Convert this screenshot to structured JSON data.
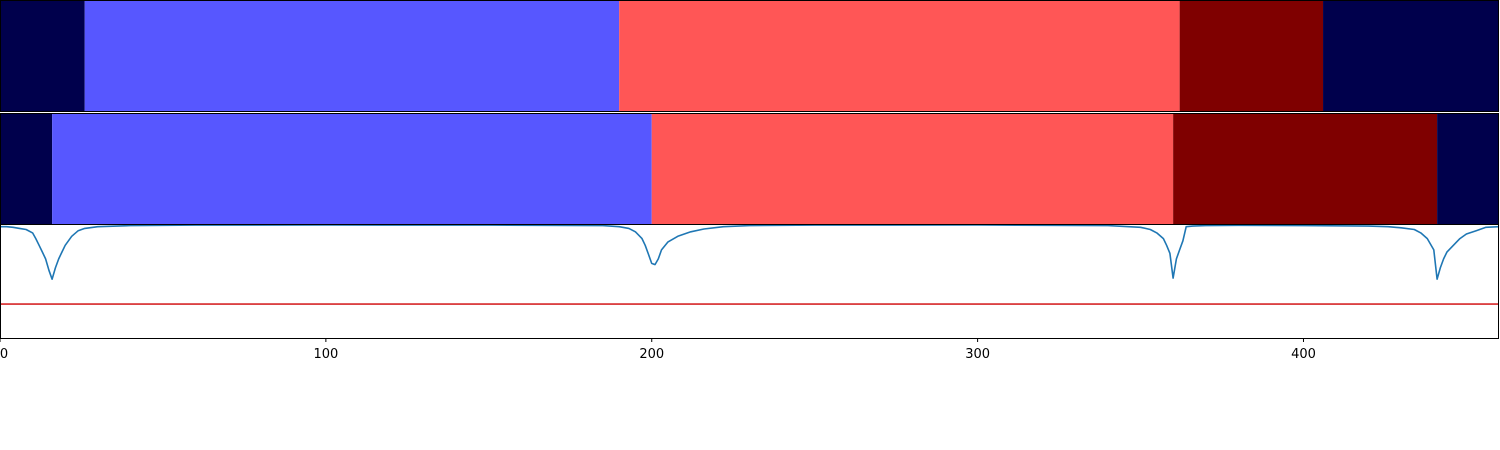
{
  "chart_data": [
    {
      "type": "heatmap",
      "xlim": [
        0,
        460
      ],
      "segments": [
        {
          "start": 0,
          "end": 26,
          "color": "#00004c"
        },
        {
          "start": 26,
          "end": 190,
          "color": "#5757ff"
        },
        {
          "start": 190,
          "end": 362,
          "color": "#ff5656"
        },
        {
          "start": 362,
          "end": 406,
          "color": "#7f0000"
        },
        {
          "start": 406,
          "end": 460,
          "color": "#00004c"
        }
      ]
    },
    {
      "type": "heatmap",
      "xlim": [
        0,
        460
      ],
      "segments": [
        {
          "start": 0,
          "end": 16,
          "color": "#00004c"
        },
        {
          "start": 16,
          "end": 200,
          "color": "#5757ff"
        },
        {
          "start": 200,
          "end": 360,
          "color": "#ff5656"
        },
        {
          "start": 360,
          "end": 441,
          "color": "#7f0000"
        },
        {
          "start": 441,
          "end": 460,
          "color": "#00004c"
        }
      ]
    },
    {
      "type": "line",
      "xlim": [
        0,
        460
      ],
      "ylim": [
        0,
        1
      ],
      "xticks": [
        0,
        100,
        200,
        300,
        400
      ],
      "xtick_labels": [
        "0",
        "100",
        "200",
        "300",
        "400"
      ],
      "series": [
        {
          "color": "#1f77b4",
          "x": [
            0,
            2,
            4,
            6,
            8,
            10,
            11,
            12,
            13,
            14,
            15,
            16,
            17,
            18,
            19,
            20,
            22,
            24,
            26,
            30,
            40,
            60,
            100,
            150,
            185,
            190,
            193,
            195,
            197,
            198,
            199,
            200,
            201,
            202,
            203,
            205,
            208,
            212,
            216,
            222,
            230,
            250,
            300,
            340,
            350,
            353,
            355,
            357,
            358,
            359,
            360,
            361,
            362,
            363,
            364,
            366,
            370,
            380,
            400,
            420,
            426,
            430,
            434,
            436,
            438,
            440,
            441,
            442,
            443,
            444,
            446,
            448,
            450,
            453,
            456,
            460
          ],
          "y": [
            0.985,
            0.985,
            0.98,
            0.97,
            0.96,
            0.93,
            0.88,
            0.82,
            0.76,
            0.7,
            0.6,
            0.52,
            0.62,
            0.7,
            0.76,
            0.82,
            0.9,
            0.95,
            0.97,
            0.985,
            0.995,
            0.999,
            1.0,
            0.999,
            0.995,
            0.985,
            0.97,
            0.94,
            0.88,
            0.82,
            0.74,
            0.66,
            0.65,
            0.7,
            0.78,
            0.85,
            0.9,
            0.94,
            0.965,
            0.985,
            0.995,
            0.999,
            1.0,
            0.995,
            0.98,
            0.96,
            0.93,
            0.88,
            0.82,
            0.75,
            0.53,
            0.7,
            0.78,
            0.86,
            0.985,
            0.99,
            0.995,
            0.997,
            0.995,
            0.99,
            0.985,
            0.975,
            0.96,
            0.93,
            0.88,
            0.78,
            0.52,
            0.62,
            0.7,
            0.76,
            0.82,
            0.88,
            0.92,
            0.95,
            0.98,
            0.985
          ]
        },
        {
          "color": "#d62728",
          "x": [
            0,
            460
          ],
          "y": [
            0.3,
            0.3
          ]
        }
      ]
    }
  ]
}
